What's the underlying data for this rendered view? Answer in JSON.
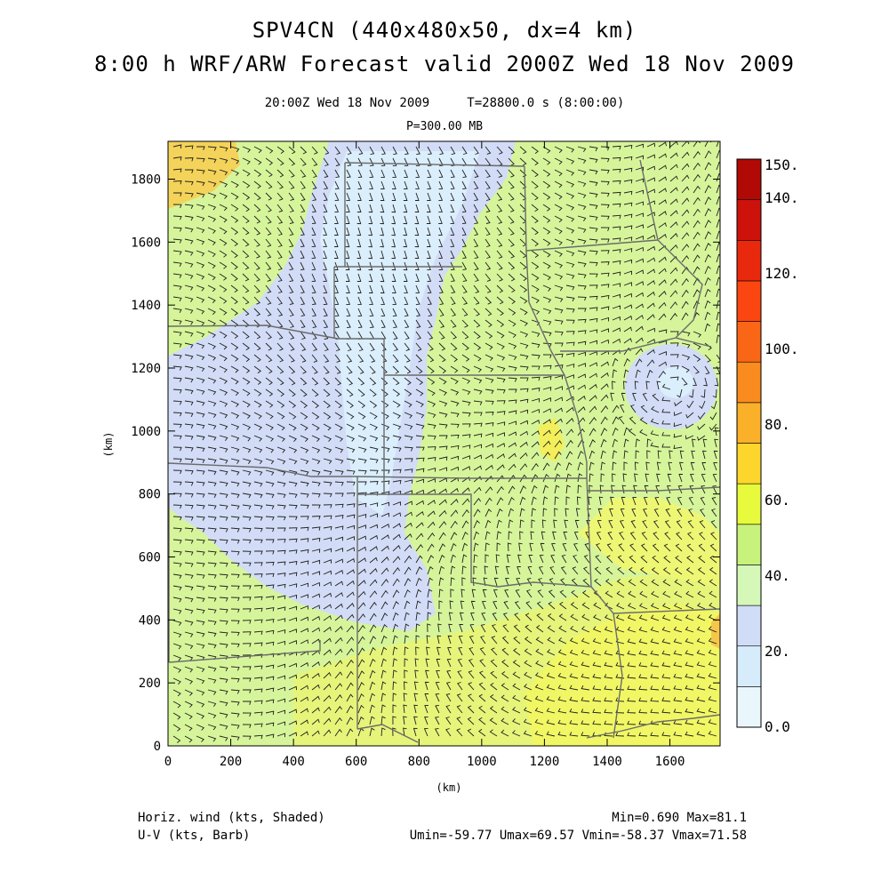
{
  "header": {
    "title": "SPV4CN (440x480x50, dx=4 km)",
    "subtitle": "8:00 h WRF/ARW Forecast valid 2000Z Wed 18 Nov 2009",
    "valid_time": "20:00Z Wed 18 Nov 2009",
    "model_time": "T=28800.0 s (8:00:00)",
    "level": "P=300.00 MB"
  },
  "axes": {
    "x_label": "(km)",
    "y_label": "(km)",
    "x_ticks": [
      "0",
      "200",
      "400",
      "600",
      "800",
      "1000",
      "1200",
      "1400",
      "1600"
    ],
    "y_ticks": [
      "0",
      "200",
      "400",
      "600",
      "800",
      "1000",
      "1200",
      "1400",
      "1600",
      "1800"
    ],
    "x_range": [
      0,
      1760
    ],
    "y_range": [
      0,
      1920
    ]
  },
  "colorbar": {
    "labels": [
      "0.0",
      "20.",
      "40.",
      "60.",
      "80.",
      "100.",
      "120.",
      "140.",
      "150."
    ],
    "colors": [
      "#e9f7fd",
      "#d6ecfb",
      "#d1dcf6",
      "#d5f8b9",
      "#c7f27b",
      "#e8fa3c",
      "#fcd62c",
      "#fbb02a",
      "#f98b1f",
      "#f96616",
      "#fc4611",
      "#e8290e",
      "#cc120a",
      "#b00906"
    ]
  },
  "footer": {
    "shaded_label": "Horiz. wind (kts, Shaded)",
    "barb_label": "U-V (kts, Barb)",
    "minmax": "Min=0.690 Max=81.1",
    "uv_stats": "Umin=-59.77 Umax=69.57 Vmin=-58.37 Vmax=71.58"
  }
}
